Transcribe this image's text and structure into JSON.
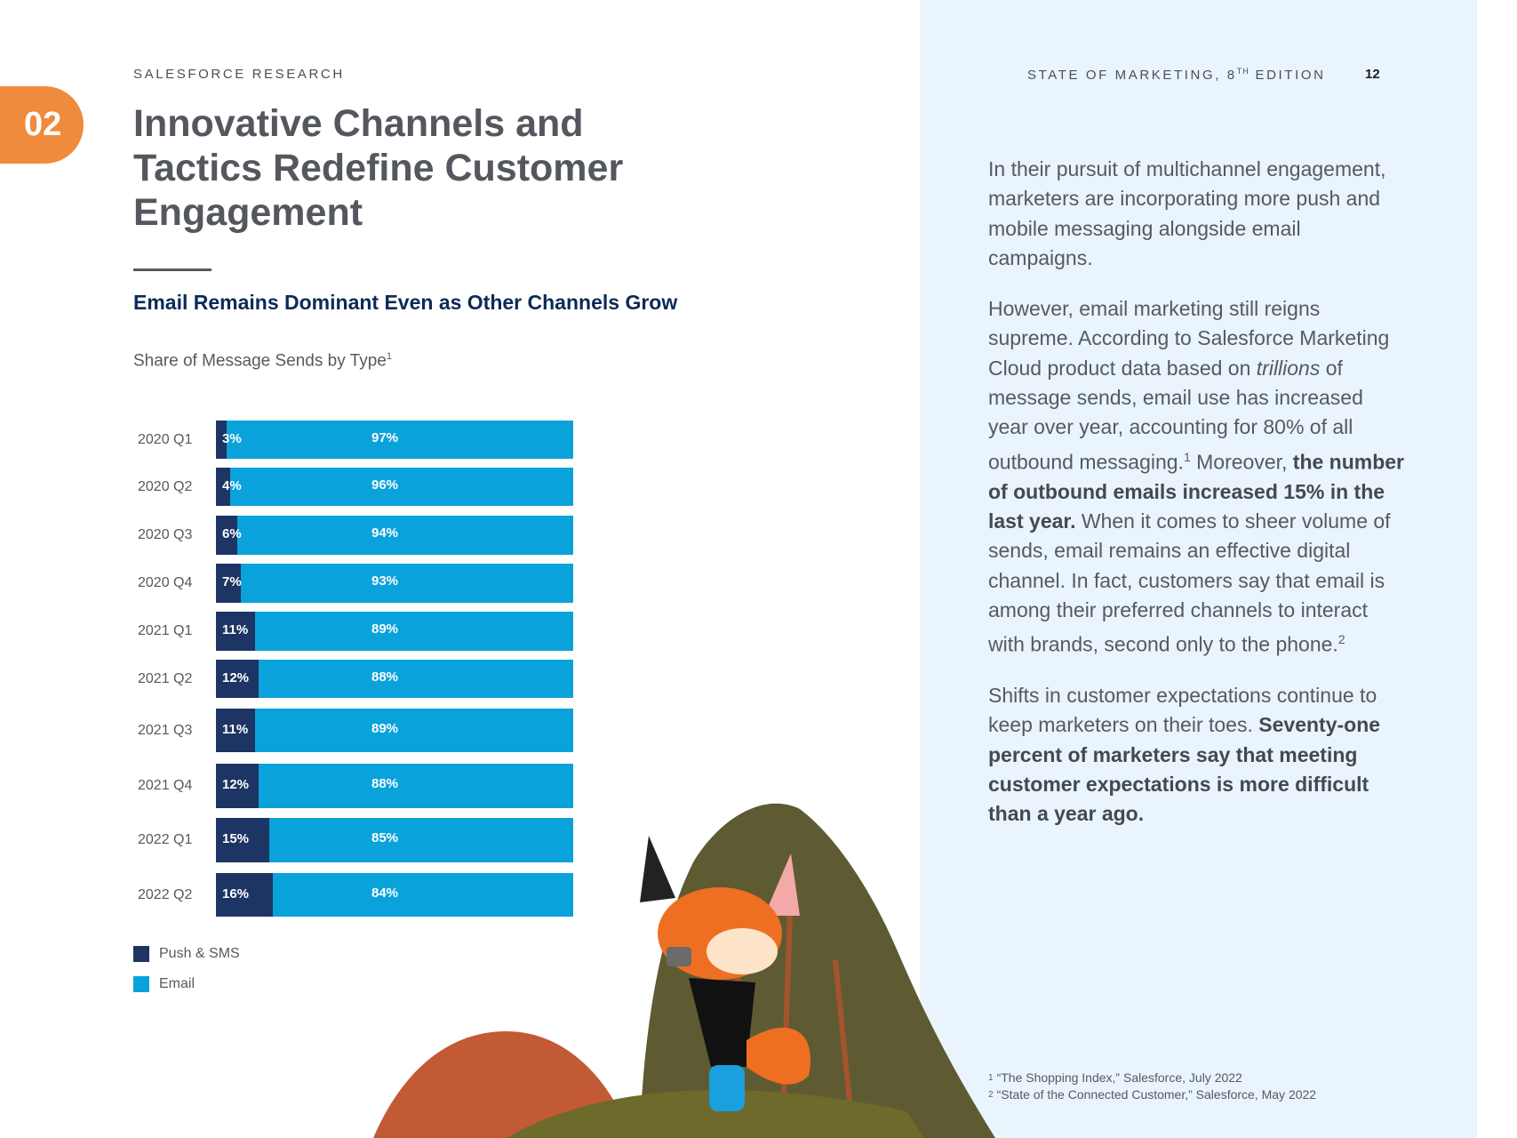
{
  "header": {
    "eyebrow": "SALESFORCE RESEARCH",
    "report_title_prefix": "STATE OF MARKETING, 8",
    "report_title_sup": "TH",
    "report_title_suffix": " EDITION",
    "page_number": "12",
    "section_number": "02"
  },
  "page_title": "Innovative Channels and Tactics Redefine Customer Engagement",
  "chart_heading": "Email Remains Dominant Even as Other Channels Grow",
  "chart_subtitle": "Share of Message Sends by Type",
  "chart_subtitle_note": "1",
  "chart_data": {
    "type": "bar",
    "orientation": "horizontal",
    "stacked": true,
    "title": "Share of Message Sends by Type",
    "categories": [
      "2020 Q1",
      "2020 Q2",
      "2020 Q3",
      "2020 Q4",
      "2021 Q1",
      "2021 Q2",
      "2021 Q3",
      "2021 Q4",
      "2022 Q1",
      "2022 Q2"
    ],
    "series": [
      {
        "name": "Push & SMS",
        "color": "#1c3564",
        "values": [
          3,
          4,
          6,
          7,
          11,
          12,
          11,
          12,
          15,
          16
        ],
        "labels": [
          "3%",
          "4%",
          "6%",
          "7%",
          "11%",
          "12%",
          "11%",
          "12%",
          "15%",
          "16%"
        ]
      },
      {
        "name": "Email",
        "color": "#0aa2db",
        "values": [
          97,
          96,
          94,
          93,
          89,
          88,
          89,
          88,
          85,
          84
        ],
        "labels": [
          "97%",
          "96%",
          "94%",
          "93%",
          "89%",
          "88%",
          "89%",
          "88%",
          "85%",
          "84%"
        ]
      }
    ],
    "xlim": [
      0,
      100
    ],
    "legend": "bottom-left"
  },
  "body": {
    "p1": "In their pursuit of multichannel engagement, marketers are incorporating more push and mobile messaging alongside email campaigns.",
    "p2_a": "However, email marketing still reigns supreme. According to Salesforce Marketing Cloud product data based on ",
    "p2_em": "trillions",
    "p2_b": " of message sends, email use has increased year over year, accounting for 80% of all outbound messaging.",
    "p2_sup1": "1",
    "p2_c": " Moreover, ",
    "p2_bold": "the number of outbound emails increased 15% in the last year.",
    "p2_d": " When it comes to sheer volume of sends, email remains an effective digital channel. In fact, customers say that email is among their preferred channels to interact with brands, second only to the phone.",
    "p2_sup2": "2",
    "p3_a": "Shifts in customer expectations continue to keep marketers on their toes. ",
    "p3_bold": "Seventy-one percent of marketers say that meeting customer expectations is more difficult than a year ago."
  },
  "footnotes": [
    {
      "mark": "1",
      "text": "“The Shopping Index,” Salesforce, July 2022"
    },
    {
      "mark": "2",
      "text": "“State of the Connected Customer,” Salesforce, May 2022"
    }
  ],
  "colors": {
    "accent_orange": "#f08a3c",
    "navy": "#1c3564",
    "email_blue": "#0aa2db",
    "panel_bg": "#eaf4fd",
    "heading_navy": "#0b2a56"
  }
}
